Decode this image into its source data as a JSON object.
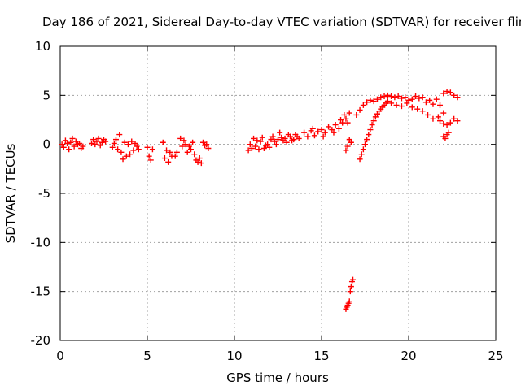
{
  "chart_data": {
    "type": "scatter",
    "title": "Day 186 of 2021, Sidereal Day-to-day VTEC variation (SDTVAR) for receiver flin",
    "xlabel": "GPS time / hours",
    "ylabel": "SDTVAR / TECUs",
    "xlim": [
      0,
      25
    ],
    "ylim": [
      -20,
      10
    ],
    "xticks": [
      "0",
      "5",
      "10",
      "15",
      "20",
      "25"
    ],
    "yticks": [
      "10",
      "5",
      "0",
      "-5",
      "-10",
      "-15",
      "-20"
    ],
    "grid": true,
    "marker": "+",
    "color": "#ff0000",
    "series": [
      {
        "name": "SDTVAR",
        "x": [
          0.1,
          0.2,
          0.3,
          0.4,
          0.5,
          0.6,
          0.7,
          0.8,
          0.9,
          1.0,
          1.1,
          1.2,
          1.3,
          1.8,
          1.9,
          2.0,
          2.1,
          2.2,
          2.3,
          2.4,
          2.5,
          2.6,
          3.0,
          3.1,
          3.2,
          3.3,
          3.4,
          3.5,
          3.6,
          3.7,
          3.8,
          3.9,
          4.0,
          4.1,
          4.2,
          4.3,
          4.4,
          4.5,
          5.0,
          5.1,
          5.2,
          5.3,
          5.9,
          6.0,
          6.1,
          6.2,
          6.3,
          6.4,
          6.6,
          6.7,
          6.9,
          7.0,
          7.1,
          7.2,
          7.3,
          7.4,
          7.5,
          7.6,
          7.7,
          7.8,
          7.9,
          8.0,
          8.1,
          8.2,
          8.3,
          8.4,
          8.5,
          10.8,
          10.9,
          11.0,
          11.1,
          11.2,
          11.3,
          11.4,
          11.5,
          11.6,
          11.7,
          11.8,
          11.9,
          12.0,
          12.1,
          12.2,
          12.3,
          12.4,
          12.5,
          12.6,
          12.7,
          12.8,
          12.9,
          13.0,
          13.1,
          13.2,
          13.3,
          13.4,
          13.5,
          13.6,
          13.7,
          14.0,
          14.2,
          14.4,
          14.5,
          14.6,
          14.8,
          15.0,
          15.1,
          15.2,
          15.4,
          15.6,
          15.7,
          15.8,
          16.0,
          16.1,
          16.2,
          16.3,
          16.4,
          16.5,
          16.6,
          16.4,
          16.45,
          16.5,
          16.55,
          16.6,
          16.65,
          16.7,
          16.75,
          16.8,
          16.4,
          16.5,
          16.6,
          16.7,
          17.2,
          17.3,
          17.4,
          17.5,
          17.6,
          17.7,
          17.8,
          17.9,
          18.0,
          18.1,
          18.2,
          18.3,
          18.4,
          18.5,
          18.6,
          18.7,
          18.8,
          17.0,
          17.2,
          17.4,
          17.6,
          17.8,
          18.0,
          18.2,
          18.4,
          18.6,
          18.8,
          19.0,
          19.2,
          19.4,
          19.6,
          19.8,
          20.0,
          20.2,
          20.4,
          20.6,
          20.8,
          21.0,
          21.2,
          21.4,
          21.6,
          21.8,
          22.0,
          22.2,
          22.4,
          22.6,
          22.8,
          19.0,
          19.3,
          19.6,
          19.9,
          20.2,
          20.5,
          20.8,
          21.1,
          21.4,
          21.7,
          22.0,
          21.8,
          22.0,
          22.2,
          22.4,
          22.6,
          22.8,
          22.0,
          22.1,
          22.2,
          22.3
        ],
        "y": [
          0.0,
          -0.3,
          0.4,
          0.1,
          -0.5,
          0.2,
          0.6,
          -0.2,
          0.3,
          0.0,
          0.1,
          -0.4,
          -0.2,
          0.1,
          0.5,
          0.0,
          0.3,
          0.6,
          -0.1,
          0.2,
          0.5,
          0.3,
          -0.3,
          0.1,
          0.5,
          -0.5,
          1.0,
          -0.8,
          -1.5,
          0.2,
          -1.2,
          0.0,
          -1.0,
          0.3,
          -0.6,
          0.1,
          -0.2,
          -0.5,
          -0.3,
          -1.2,
          -1.6,
          -0.5,
          0.2,
          -1.4,
          -0.6,
          -1.8,
          -0.8,
          -1.2,
          -1.2,
          -0.8,
          0.6,
          -0.2,
          0.4,
          0.0,
          -0.8,
          -0.2,
          -0.5,
          0.2,
          -1.0,
          -1.6,
          -1.8,
          -1.4,
          -1.9,
          0.2,
          -0.1,
          0.0,
          -0.4,
          -0.6,
          0.0,
          -0.4,
          0.6,
          -0.2,
          0.4,
          -0.5,
          0.3,
          0.7,
          -0.4,
          -0.1,
          0.0,
          -0.3,
          0.5,
          0.8,
          0.3,
          0.0,
          0.5,
          1.2,
          0.7,
          0.4,
          0.6,
          0.2,
          1.0,
          0.8,
          0.4,
          0.5,
          1.0,
          0.8,
          0.6,
          1.2,
          0.8,
          1.4,
          1.6,
          0.9,
          1.3,
          1.5,
          0.8,
          1.2,
          1.8,
          1.5,
          1.2,
          2.0,
          1.6,
          2.5,
          2.2,
          3.0,
          2.6,
          2.2,
          3.2,
          -16.8,
          -16.6,
          -16.4,
          -16.2,
          -16.0,
          -15.0,
          -14.5,
          -14.0,
          -13.8,
          -0.6,
          -0.2,
          0.5,
          0.2,
          -1.5,
          -1.0,
          -0.5,
          0.0,
          0.5,
          1.0,
          1.5,
          2.0,
          2.4,
          2.8,
          3.1,
          3.4,
          3.6,
          3.8,
          4.0,
          4.2,
          4.4,
          3.0,
          3.5,
          4.0,
          4.3,
          4.5,
          4.4,
          4.6,
          4.8,
          4.9,
          5.0,
          4.9,
          4.8,
          4.9,
          4.7,
          4.8,
          4.5,
          4.6,
          4.9,
          4.7,
          4.8,
          4.3,
          4.5,
          4.1,
          4.6,
          4.0,
          5.2,
          5.4,
          5.3,
          5.0,
          4.8,
          4.2,
          4.0,
          3.9,
          4.2,
          3.8,
          3.6,
          3.4,
          3.0,
          2.6,
          2.8,
          3.2,
          2.4,
          2.1,
          2.0,
          2.2,
          2.6,
          2.4,
          0.8,
          0.6,
          1.0,
          1.2
        ]
      }
    ]
  }
}
